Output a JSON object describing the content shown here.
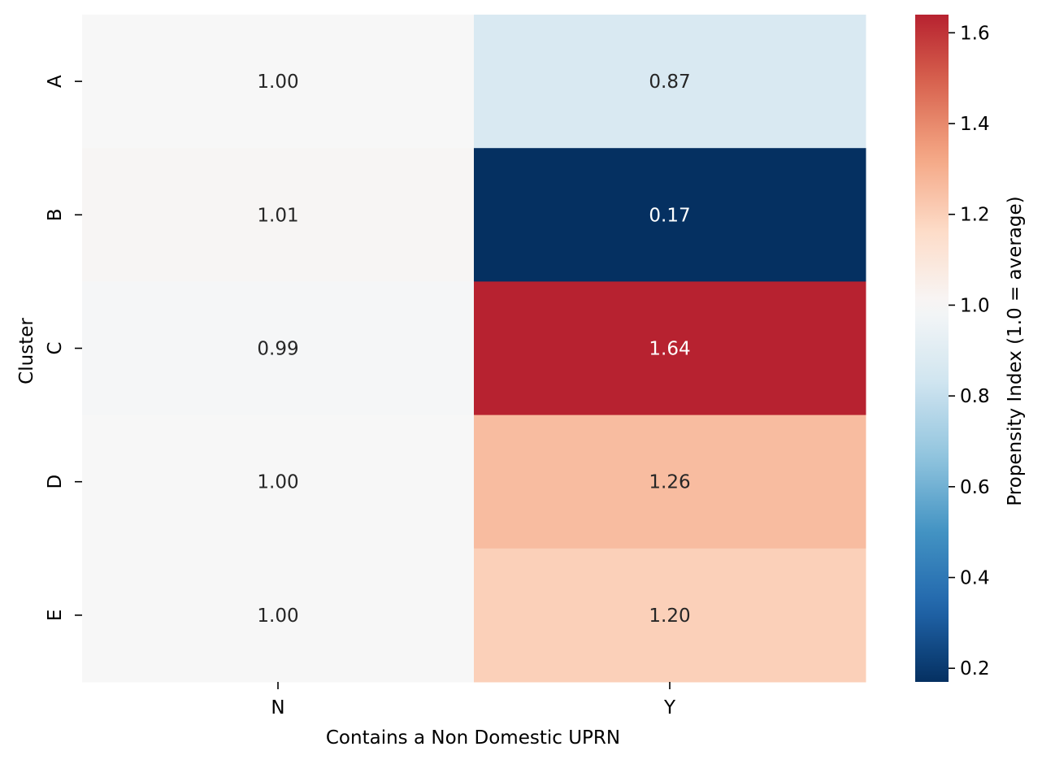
{
  "chart_data": {
    "type": "heatmap",
    "title": "",
    "xlabel": "Contains a Non Domestic UPRN",
    "ylabel": "Cluster",
    "x_categories": [
      "N",
      "Y"
    ],
    "y_categories": [
      "A",
      "B",
      "C",
      "D",
      "E"
    ],
    "values": [
      [
        1.0,
        0.87
      ],
      [
        1.01,
        0.17
      ],
      [
        0.99,
        1.64
      ],
      [
        1.0,
        1.26
      ],
      [
        1.0,
        1.2
      ]
    ],
    "value_labels": [
      [
        "1.00",
        "0.87"
      ],
      [
        "1.01",
        "0.17"
      ],
      [
        "0.99",
        "1.64"
      ],
      [
        "1.00",
        "1.26"
      ],
      [
        "1.00",
        "1.20"
      ]
    ],
    "colorbar": {
      "label": "Propensity Index (1.0 = average)",
      "vmin": 0.17,
      "vmax": 1.64,
      "ticks": [
        0.2,
        0.4,
        0.6,
        0.8,
        1.0,
        1.2,
        1.4,
        1.6
      ],
      "tick_labels": [
        "0.2",
        "0.4",
        "0.6",
        "0.8",
        "1.0",
        "1.2",
        "1.4",
        "1.6"
      ],
      "colormap": "RdBu_r",
      "center": 1.0
    }
  }
}
